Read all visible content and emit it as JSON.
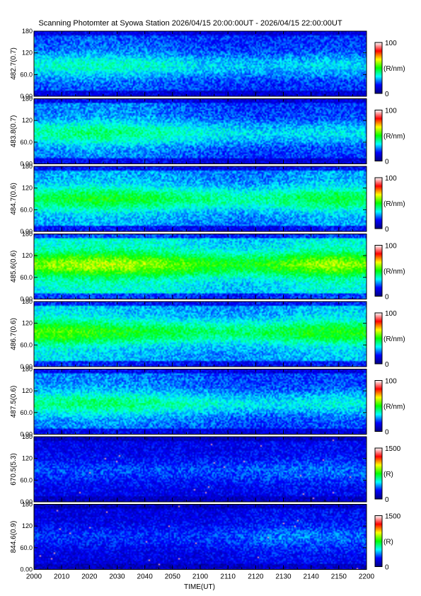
{
  "chart_data": {
    "type": "heatmap",
    "title": "Scanning Photomter at Syowa Station 2026/04/15 20:00:00UT - 2026/04/15 22:00:00UT",
    "xlabel": "TIME(UT)",
    "x_ticks": [
      "2000",
      "2010",
      "2020",
      "2030",
      "2040",
      "2050",
      "2100",
      "2110",
      "2120",
      "2130",
      "2140",
      "2150",
      "2200"
    ],
    "ylim": [
      0,
      180
    ],
    "y_ticks": [
      "0.00",
      "60.0",
      "120",
      "180"
    ],
    "colormap": [
      "#000080",
      "#0000ff",
      "#00ffff",
      "#00ff00",
      "#ffff00",
      "#ff0000",
      "#ffffff"
    ],
    "panels": [
      {
        "ylabel": "482.7(0.7)",
        "cbar_max": "100",
        "cbar_min": "0",
        "cbar_unit": "(R/nm)",
        "intensity": [
          0.3,
          0.32,
          0.33,
          0.32,
          0.31,
          0.28,
          0.26,
          0.25,
          0.25,
          0.26,
          0.27,
          0.26
        ],
        "band_center": 85
      },
      {
        "ylabel": "483.8(0.7)",
        "cbar_max": "100",
        "cbar_min": "0",
        "cbar_unit": "(R/nm)",
        "intensity": [
          0.34,
          0.36,
          0.38,
          0.37,
          0.35,
          0.32,
          0.29,
          0.27,
          0.26,
          0.27,
          0.28,
          0.27
        ],
        "band_center": 85
      },
      {
        "ylabel": "484.7(0.6)",
        "cbar_max": "100",
        "cbar_min": "0",
        "cbar_unit": "(R/nm)",
        "intensity": [
          0.4,
          0.42,
          0.44,
          0.43,
          0.41,
          0.38,
          0.36,
          0.34,
          0.36,
          0.4,
          0.42,
          0.4
        ],
        "band_center": 90
      },
      {
        "ylabel": "485.6(0.6)",
        "cbar_max": "100",
        "cbar_min": "0",
        "cbar_unit": "(R/nm)",
        "intensity": [
          0.52,
          0.55,
          0.57,
          0.56,
          0.54,
          0.5,
          0.46,
          0.44,
          0.47,
          0.53,
          0.56,
          0.52
        ],
        "band_center": 95
      },
      {
        "ylabel": "486.7(0.6)",
        "cbar_max": "100",
        "cbar_min": "0",
        "cbar_unit": "(R/nm)",
        "intensity": [
          0.5,
          0.5,
          0.47,
          0.44,
          0.42,
          0.4,
          0.38,
          0.38,
          0.4,
          0.44,
          0.46,
          0.45
        ],
        "band_center": 95
      },
      {
        "ylabel": "487.5(0.6)",
        "cbar_max": "100",
        "cbar_min": "0",
        "cbar_unit": "(R/nm)",
        "intensity": [
          0.36,
          0.37,
          0.38,
          0.37,
          0.35,
          0.33,
          0.3,
          0.28,
          0.27,
          0.28,
          0.3,
          0.29
        ],
        "band_center": 85
      },
      {
        "ylabel": "670.5(5.3)",
        "cbar_max": "1500",
        "cbar_min": "0",
        "cbar_unit": "(R)",
        "intensity": [
          0.16,
          0.16,
          0.16,
          0.16,
          0.16,
          0.16,
          0.16,
          0.17,
          0.18,
          0.19,
          0.19,
          0.18
        ],
        "band_center": 85
      },
      {
        "ylabel": "844.6(0.9)",
        "cbar_max": "1500",
        "cbar_min": "0",
        "cbar_unit": "(R)",
        "intensity": [
          0.14,
          0.14,
          0.14,
          0.14,
          0.14,
          0.14,
          0.15,
          0.17,
          0.2,
          0.2,
          0.19,
          0.18
        ],
        "band_center": 90
      }
    ]
  }
}
